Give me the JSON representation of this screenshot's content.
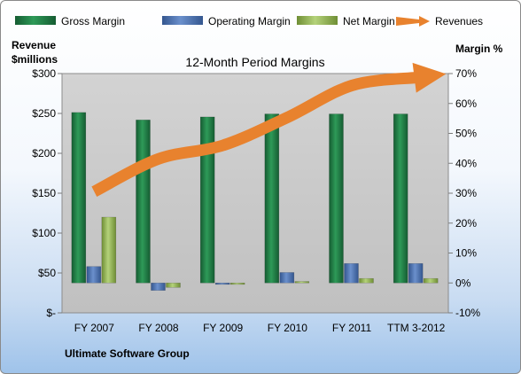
{
  "colors": {
    "gross": "#1f7a45",
    "operating": "#4a72b0",
    "net": "#8fb052",
    "revenue": "#e8822e"
  },
  "footer": "Ultimate Software Group",
  "chart_data": {
    "type": "bar",
    "title": "12-Month Period Margins",
    "ylabel_left": [
      "Revenue",
      "$millions"
    ],
    "ylabel_right": "Margin %",
    "categories": [
      "FY 2007",
      "FY 2008",
      "FY 2009",
      "FY 2010",
      "FY 2011",
      "TTM 3-2012"
    ],
    "left_axis": {
      "ylim": [
        0,
        300
      ],
      "ticks": [
        0,
        50,
        100,
        150,
        200,
        250,
        300
      ],
      "tick_labels": [
        "$-",
        "$50",
        "$100",
        "$150",
        "$200",
        "$250",
        "$300"
      ]
    },
    "right_axis": {
      "ylim": [
        -10,
        70
      ],
      "ticks": [
        -10,
        0,
        10,
        20,
        30,
        40,
        50,
        60,
        70
      ],
      "tick_labels": [
        "-10%",
        "0%",
        "10%",
        "20%",
        "30%",
        "40%",
        "50%",
        "60%",
        "70%"
      ]
    },
    "series": [
      {
        "name": "Gross Margin",
        "axis": "right",
        "values": [
          57,
          54.5,
          55.5,
          56.5,
          56.5,
          56.5
        ]
      },
      {
        "name": "Operating Margin",
        "axis": "right",
        "values": [
          5.5,
          -2.5,
          -0.5,
          3.5,
          6.5,
          6.5
        ]
      },
      {
        "name": "Net Margin",
        "axis": "right",
        "values": [
          22,
          -1.5,
          -0.5,
          0.5,
          1.5,
          1.5
        ]
      },
      {
        "name": "Revenues",
        "axis": "left",
        "style": "arrow",
        "values": [
          152,
          193,
          210,
          245,
          285,
          295
        ]
      }
    ],
    "legend": "top",
    "grid": false
  }
}
